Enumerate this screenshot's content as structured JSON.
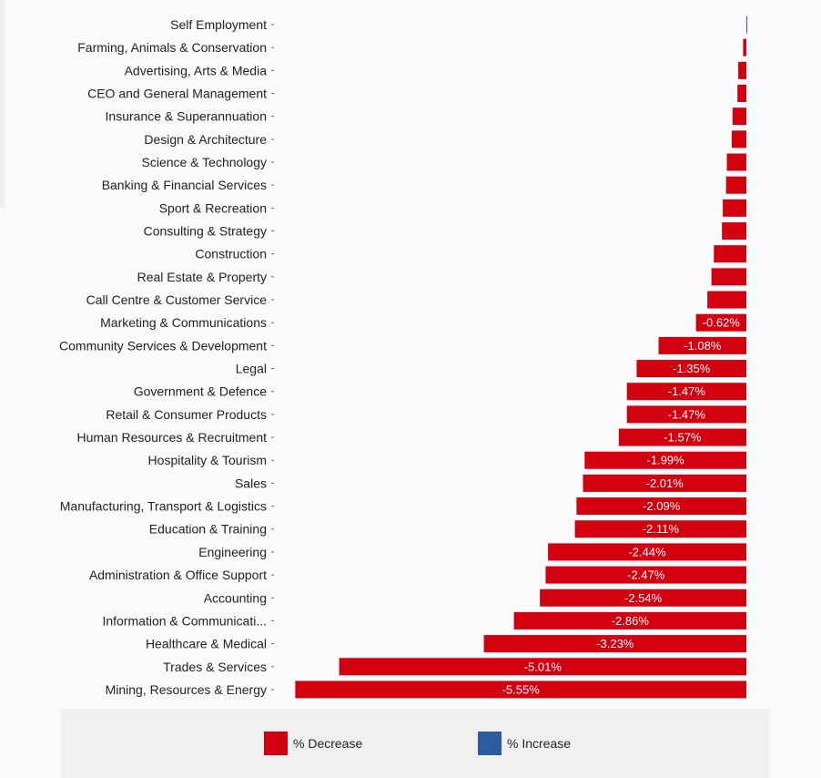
{
  "chart_data": {
    "type": "bar",
    "orientation": "horizontal",
    "categories": [
      "Self Employment",
      "Farming, Animals & Conservation",
      "Advertising, Arts & Media",
      "CEO and General Management",
      "Insurance & Superannuation",
      "Design & Architecture",
      "Science & Technology",
      "Banking & Financial Services",
      "Sport & Recreation",
      "Consulting & Strategy",
      "Construction",
      "Real Estate & Property",
      "Call Centre & Customer Service",
      "Marketing & Communications",
      "Community Services & Development",
      "Legal",
      "Government & Defence",
      "Retail & Consumer Products",
      "Human Resources & Recruitment",
      "Hospitality & Tourism",
      "Sales",
      "Manufacturing, Transport & Logistics",
      "Education & Training",
      "Engineering",
      "Administration & Office Support",
      "Accounting",
      "Information & Communicati...",
      "Healthcare & Medical",
      "Trades & Services",
      "Mining, Resources & Energy"
    ],
    "values": [
      0.01,
      -0.04,
      -0.1,
      -0.11,
      -0.17,
      -0.18,
      -0.24,
      -0.25,
      -0.29,
      -0.3,
      -0.4,
      -0.43,
      -0.48,
      -0.62,
      -1.08,
      -1.35,
      -1.47,
      -1.47,
      -1.57,
      -1.99,
      -2.01,
      -2.09,
      -2.11,
      -2.44,
      -2.47,
      -2.54,
      -2.86,
      -3.23,
      -5.01,
      -5.55
    ],
    "data_labels": [
      "",
      "",
      "",
      "",
      "",
      "",
      "",
      "",
      "",
      "",
      "",
      "",
      "",
      "-0.62%",
      "-1.08%",
      "-1.35%",
      "-1.47%",
      "-1.47%",
      "-1.57%",
      "-1.99%",
      "-2.01%",
      "-2.09%",
      "-2.11%",
      "-2.44%",
      "-2.47%",
      "-2.54%",
      "-2.86%",
      "-3.23%",
      "-5.01%",
      "-5.55%"
    ],
    "legend": [
      "% Decrease",
      "% Increase"
    ],
    "legend_position": "bottom",
    "grid": false
  },
  "colors": {
    "decrease": "#d30010",
    "increase": "#2e5aa0"
  }
}
